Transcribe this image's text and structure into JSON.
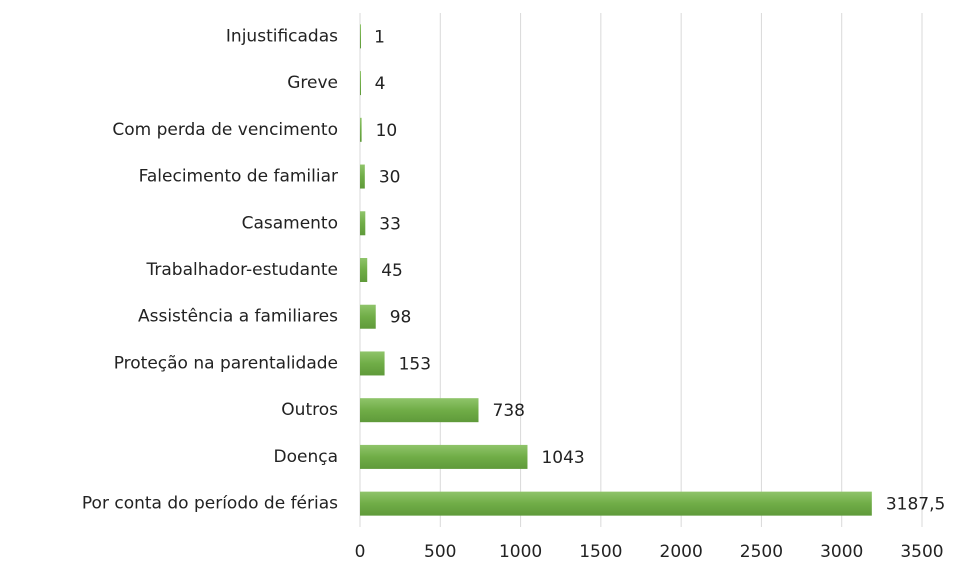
{
  "chart_data": {
    "type": "bar",
    "orientation": "horizontal",
    "categories": [
      "Injustificadas",
      "Greve",
      "Com perda de vencimento",
      "Falecimento de familiar",
      "Casamento",
      "Trabalhador-estudante",
      "Assistência a familiares",
      "Proteção na parentalidade",
      "Outros",
      "Doença",
      "Por conta do período de férias"
    ],
    "values": [
      1,
      4,
      10,
      30,
      33,
      45,
      98,
      153,
      738,
      1043,
      3187.5
    ],
    "value_labels": [
      "1",
      "4",
      "10",
      "30",
      "33",
      "45",
      "98",
      "153",
      "738",
      "1043",
      "3187,5"
    ],
    "color": "#70ad47",
    "xlim": [
      0,
      3500
    ],
    "xticks": [
      0,
      500,
      1000,
      1500,
      2000,
      2500,
      3000,
      3500
    ],
    "grid": true
  }
}
